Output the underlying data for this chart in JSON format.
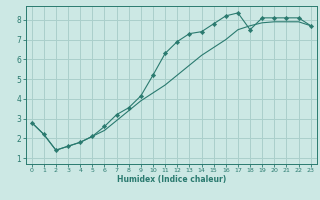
{
  "xlabel": "Humidex (Indice chaleur)",
  "bg_color": "#cce8e4",
  "grid_color": "#aacfcb",
  "line_color": "#2a7a6f",
  "xlim": [
    -0.5,
    23.5
  ],
  "ylim": [
    0.7,
    8.7
  ],
  "xticks": [
    0,
    1,
    2,
    3,
    4,
    5,
    6,
    7,
    8,
    9,
    10,
    11,
    12,
    13,
    14,
    15,
    16,
    17,
    18,
    19,
    20,
    21,
    22,
    23
  ],
  "yticks": [
    1,
    2,
    3,
    4,
    5,
    6,
    7,
    8
  ],
  "line1_x": [
    0,
    1,
    2,
    3,
    4,
    5,
    6,
    7,
    8,
    9,
    10,
    11,
    12,
    13,
    14,
    15,
    16,
    17,
    18,
    19,
    20,
    21,
    22,
    23
  ],
  "line1_y": [
    2.8,
    2.2,
    1.4,
    1.6,
    1.8,
    2.1,
    2.6,
    3.2,
    3.55,
    4.15,
    5.2,
    6.3,
    6.9,
    7.3,
    7.4,
    7.8,
    8.2,
    8.35,
    7.5,
    8.1,
    8.1,
    8.1,
    8.1,
    7.7
  ],
  "line2_x": [
    0,
    1,
    2,
    3,
    4,
    5,
    6,
    7,
    8,
    9,
    10,
    11,
    12,
    13,
    14,
    15,
    16,
    17,
    18,
    19,
    20,
    21,
    22,
    23
  ],
  "line2_y": [
    2.8,
    2.2,
    1.4,
    1.6,
    1.8,
    2.1,
    2.4,
    2.9,
    3.4,
    3.9,
    4.3,
    4.7,
    5.2,
    5.7,
    6.2,
    6.6,
    7.0,
    7.5,
    7.7,
    7.85,
    7.9,
    7.9,
    7.9,
    7.7
  ]
}
